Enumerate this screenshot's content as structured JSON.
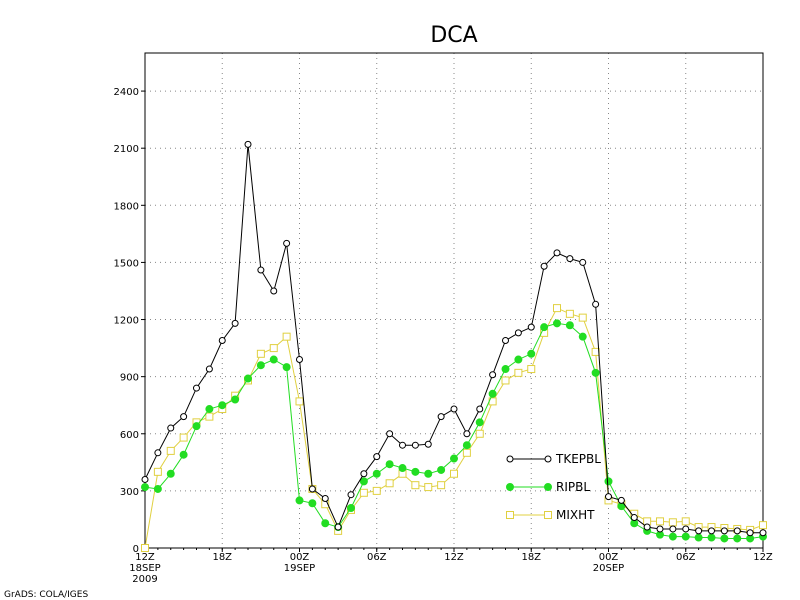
{
  "chart_data": {
    "type": "line",
    "title": "DCA",
    "xlabel": "",
    "ylabel": "",
    "ylim": [
      0,
      2600
    ],
    "y_ticks": [
      0,
      300,
      600,
      900,
      1200,
      1500,
      1800,
      2100,
      2400
    ],
    "x_ticks": [
      {
        "i": 0,
        "label": "12Z",
        "sub1": "18SEP",
        "sub2": "2009"
      },
      {
        "i": 6,
        "label": "18Z",
        "sub1": "",
        "sub2": ""
      },
      {
        "i": 12,
        "label": "00Z",
        "sub1": "19SEP",
        "sub2": ""
      },
      {
        "i": 18,
        "label": "06Z",
        "sub1": "",
        "sub2": ""
      },
      {
        "i": 24,
        "label": "12Z",
        "sub1": "",
        "sub2": ""
      },
      {
        "i": 30,
        "label": "18Z",
        "sub1": "",
        "sub2": ""
      },
      {
        "i": 36,
        "label": "00Z",
        "sub1": "20SEP",
        "sub2": ""
      },
      {
        "i": 42,
        "label": "06Z",
        "sub1": "",
        "sub2": ""
      },
      {
        "i": 48,
        "label": "12Z",
        "sub1": "",
        "sub2": ""
      }
    ],
    "grid": true,
    "legend": "lower-right",
    "series": [
      {
        "name": "TKEPBL",
        "color": "#000000",
        "marker": "open-circle",
        "values": [
          360,
          500,
          630,
          690,
          840,
          940,
          1090,
          1180,
          2120,
          1460,
          1350,
          1600,
          990,
          310,
          260,
          110,
          280,
          390,
          480,
          600,
          540,
          540,
          545,
          690,
          730,
          600,
          730,
          910,
          1090,
          1130,
          1160,
          1480,
          1550,
          1520,
          1500,
          1280,
          270,
          250,
          160,
          110,
          100,
          100,
          100,
          90,
          90,
          90,
          90,
          80,
          80
        ]
      },
      {
        "name": "RIPBL",
        "color": "#22dd22",
        "marker": "filled-circle",
        "values": [
          320,
          310,
          390,
          490,
          640,
          730,
          750,
          780,
          890,
          960,
          990,
          950,
          250,
          235,
          130,
          110,
          210,
          350,
          390,
          440,
          420,
          400,
          390,
          410,
          470,
          540,
          660,
          810,
          940,
          990,
          1020,
          1160,
          1180,
          1170,
          1110,
          920,
          350,
          220,
          130,
          90,
          70,
          60,
          60,
          55,
          55,
          50,
          50,
          50,
          60
        ]
      },
      {
        "name": "MIXHT",
        "color": "#e0d040",
        "marker": "open-square",
        "values": [
          0,
          400,
          510,
          580,
          660,
          690,
          730,
          800,
          880,
          1020,
          1050,
          1110,
          770,
          310,
          230,
          90,
          200,
          290,
          300,
          340,
          390,
          330,
          320,
          330,
          390,
          500,
          600,
          770,
          880,
          920,
          940,
          1130,
          1260,
          1230,
          1210,
          1030,
          250,
          230,
          180,
          140,
          140,
          135,
          140,
          110,
          110,
          105,
          100,
          95,
          120
        ]
      }
    ]
  },
  "footer": "GrADS: COLA/IGES"
}
